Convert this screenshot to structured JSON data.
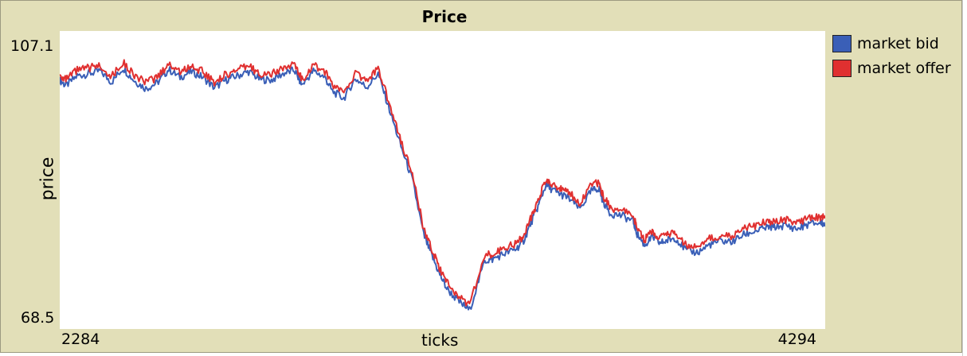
{
  "window": {
    "title": "Price"
  },
  "chart_data": {
    "type": "line",
    "title": "Price",
    "xlabel": "ticks",
    "ylabel": "price",
    "xlim": [
      2284,
      4294
    ],
    "ylim": [
      68.5,
      107.1
    ],
    "x_tick_labels": [
      "2284",
      "4294"
    ],
    "y_tick_labels": [
      "107.1",
      "68.5"
    ],
    "grid": false,
    "legend_position": "right",
    "series": [
      {
        "name": "market bid",
        "color": "#3a5fb7",
        "x": [
          2284,
          2300,
          2330,
          2360,
          2390,
          2420,
          2450,
          2480,
          2510,
          2540,
          2570,
          2600,
          2630,
          2660,
          2690,
          2720,
          2750,
          2780,
          2810,
          2840,
          2870,
          2900,
          2920,
          2950,
          2980,
          3000,
          3030,
          3060,
          3090,
          3120,
          3150,
          3180,
          3210,
          3240,
          3260,
          3280,
          3300,
          3330,
          3360,
          3400,
          3420,
          3450,
          3480,
          3500,
          3520,
          3540,
          3560,
          3580,
          3600,
          3620,
          3650,
          3680,
          3700,
          3710,
          3730,
          3760,
          3790,
          3800,
          3820,
          3840,
          3860,
          3880,
          3900,
          3930,
          3960,
          3990,
          4020,
          4050,
          4080,
          4110,
          4140,
          4160,
          4190,
          4220,
          4250,
          4280,
          4294
        ],
        "y": [
          102.4,
          101.6,
          103.0,
          103.3,
          103.7,
          102.1,
          104.1,
          102.3,
          101.2,
          102.0,
          103.9,
          102.8,
          103.6,
          102.8,
          101.3,
          102.4,
          103.0,
          103.6,
          102.5,
          102.4,
          103.3,
          103.8,
          101.7,
          103.7,
          102.8,
          100.8,
          99.8,
          102.6,
          101.4,
          103.3,
          98.2,
          93.0,
          88.3,
          80.4,
          77.7,
          75.1,
          72.9,
          71.1,
          69.8,
          76.8,
          77.0,
          77.8,
          78.4,
          79.4,
          82.0,
          84.5,
          87.5,
          86.8,
          86.2,
          85.7,
          84.2,
          86.7,
          87.1,
          85.3,
          83.5,
          83.2,
          82.4,
          80.6,
          79.0,
          80.2,
          79.3,
          79.7,
          80.1,
          78.2,
          78.0,
          79.1,
          79.6,
          79.5,
          80.5,
          81.0,
          81.5,
          81.6,
          81.8,
          81.3,
          82.0,
          82.2,
          82.0
        ]
      },
      {
        "name": "market offer",
        "color": "#e03030",
        "x": [
          2284,
          2300,
          2330,
          2360,
          2390,
          2420,
          2450,
          2480,
          2510,
          2540,
          2570,
          2600,
          2630,
          2660,
          2690,
          2720,
          2750,
          2780,
          2810,
          2840,
          2870,
          2900,
          2920,
          2950,
          2980,
          3000,
          3030,
          3060,
          3090,
          3120,
          3150,
          3180,
          3210,
          3240,
          3260,
          3280,
          3300,
          3330,
          3360,
          3400,
          3420,
          3450,
          3480,
          3500,
          3520,
          3540,
          3560,
          3580,
          3600,
          3620,
          3650,
          3680,
          3700,
          3710,
          3730,
          3760,
          3790,
          3800,
          3820,
          3840,
          3860,
          3880,
          3900,
          3930,
          3960,
          3990,
          4020,
          4050,
          4080,
          4110,
          4140,
          4160,
          4190,
          4220,
          4250,
          4280,
          4294
        ],
        "y": [
          103.2,
          102.4,
          103.8,
          104.1,
          104.5,
          102.9,
          104.9,
          103.1,
          102.0,
          102.8,
          104.7,
          103.6,
          104.4,
          103.6,
          102.1,
          103.2,
          103.8,
          104.4,
          103.3,
          103.2,
          104.1,
          104.6,
          102.5,
          104.5,
          103.6,
          101.6,
          100.6,
          103.4,
          102.2,
          104.1,
          99.0,
          93.8,
          89.1,
          81.2,
          78.5,
          75.9,
          73.7,
          71.9,
          70.6,
          77.6,
          77.8,
          78.6,
          79.2,
          80.2,
          82.8,
          85.3,
          88.3,
          87.6,
          87.0,
          86.5,
          85.0,
          87.5,
          87.9,
          86.1,
          84.3,
          84.0,
          83.2,
          81.4,
          79.8,
          81.0,
          80.1,
          80.5,
          80.9,
          79.0,
          78.8,
          79.9,
          80.4,
          80.3,
          81.3,
          81.8,
          82.3,
          82.4,
          82.6,
          82.1,
          82.8,
          83.0,
          82.8
        ]
      }
    ]
  }
}
